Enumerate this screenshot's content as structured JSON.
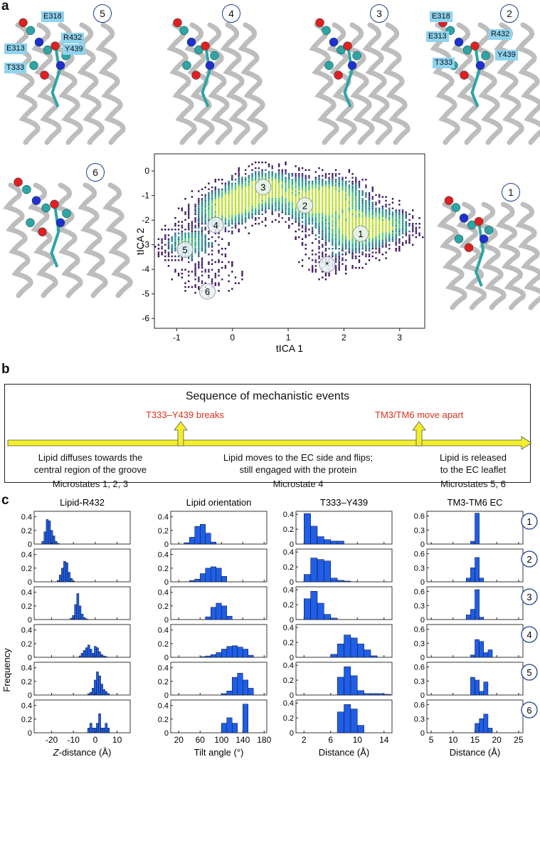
{
  "panel_labels": {
    "a": "a",
    "b": "b",
    "c": "c"
  },
  "panel_a": {
    "snapshots": [
      {
        "state": "5",
        "residues": [
          "E318",
          "R432",
          "E313",
          "Y439",
          "T333"
        ]
      },
      {
        "state": "4",
        "residues": []
      },
      {
        "state": "3",
        "residues": []
      },
      {
        "state": "2",
        "residues": [
          "E318",
          "E313",
          "R432",
          "Y439",
          "T333"
        ]
      },
      {
        "state": "6",
        "residues": []
      },
      {
        "state": "1",
        "residues": []
      }
    ],
    "colors": {
      "helix": "#bdbdbd",
      "carbon": "#2ea4a4",
      "oxygen": "#e02020",
      "nitrogen": "#2030d0"
    }
  },
  "chart_data": [
    {
      "type": "heatmap",
      "title": "",
      "xlabel": "tICA 1",
      "ylabel": "tICA 2",
      "xlim": [
        -1.4,
        3.45
      ],
      "ylim": [
        -6.4,
        0.7
      ],
      "xticks": [
        "-1",
        "0",
        "1",
        "2",
        "3"
      ],
      "xtick_values": [
        -1,
        0,
        1,
        2,
        3
      ],
      "yticks": [
        "0",
        "-1",
        "-2",
        "-3",
        "-4",
        "-5",
        "-6"
      ],
      "ytick_values": [
        0,
        -1,
        -2,
        -3,
        -4,
        -5,
        -6
      ],
      "microstates": [
        {
          "label": "1",
          "x": 2.3,
          "y": -2.55
        },
        {
          "label": "2",
          "x": 1.3,
          "y": -1.4
        },
        {
          "label": "3",
          "x": 0.55,
          "y": -0.65
        },
        {
          "label": "4",
          "x": -0.3,
          "y": -2.2
        },
        {
          "label": "5",
          "x": -0.85,
          "y": -3.2
        },
        {
          "label": "6",
          "x": -0.45,
          "y": -4.9
        },
        {
          "label": "*",
          "x": 1.7,
          "y": -3.8
        }
      ],
      "colormap": [
        "#3b0f55",
        "#44246f",
        "#2a6f8e",
        "#23998a",
        "#4ec36b",
        "#b8de29"
      ]
    },
    {
      "type": "bar",
      "panel": "c",
      "ylabel": "Frequency",
      "row_labels": [
        "1",
        "2",
        "3",
        "4",
        "5",
        "6"
      ],
      "columns": [
        {
          "title": "Lipid-R432",
          "xlabel_italic": "Z",
          "xlabel": "-distance (Å)",
          "xlim": [
            -28,
            16
          ],
          "xticks": [
            "-20",
            "-10",
            "0",
            "10"
          ],
          "xtick_values": [
            -20,
            -10,
            0,
            10
          ],
          "ylim": [
            0,
            0.48
          ],
          "yticks": [
            "0",
            "0.2",
            "0.4"
          ],
          "ytick_values": [
            0,
            0.2,
            0.4
          ],
          "bin_width": 1,
          "rows": [
            {
              "x": [
                -24,
                -23,
                -22,
                -21,
                -20,
                -19,
                -18,
                -17
              ],
              "values": [
                0.04,
                0.18,
                0.36,
                0.34,
                0.2,
                0.12,
                0.04,
                0.01
              ]
            },
            {
              "x": [
                -17,
                -16,
                -15,
                -14,
                -13,
                -12,
                -11,
                -10
              ],
              "values": [
                0.02,
                0.1,
                0.2,
                0.3,
                0.28,
                0.14,
                0.05,
                0.01
              ]
            },
            {
              "x": [
                -11,
                -10,
                -9,
                -8,
                -7,
                -6,
                -5,
                -4
              ],
              "values": [
                0.02,
                0.06,
                0.22,
                0.38,
                0.2,
                0.08,
                0.03,
                0.01
              ]
            },
            {
              "x": [
                -7,
                -6,
                -5,
                -4,
                -3,
                -2,
                -1,
                0,
                1,
                2,
                3,
                4,
                5
              ],
              "values": [
                0.02,
                0.06,
                0.1,
                0.14,
                0.18,
                0.12,
                0.06,
                0.16,
                0.14,
                0.08,
                0.04,
                0.02,
                0.01
              ]
            },
            {
              "x": [
                -3,
                -2,
                -1,
                0,
                1,
                2,
                3,
                4,
                5,
                6
              ],
              "values": [
                0.02,
                0.04,
                0.1,
                0.22,
                0.34,
                0.28,
                0.16,
                0.08,
                0.05,
                0.02
              ]
            },
            {
              "x": [
                -3,
                -2,
                -1,
                0,
                1,
                2,
                3,
                4,
                5,
                6
              ],
              "values": [
                0.07,
                0.14,
                0.07,
                0.07,
                0.14,
                0.28,
                0.07,
                0.07,
                0.14,
                0.07
              ]
            }
          ]
        },
        {
          "title": "Lipid orientation",
          "xlabel_italic": "",
          "xlabel": "Tilt angle (°)",
          "xlim": [
            5,
            185
          ],
          "xticks": [
            "20",
            "60",
            "100",
            "140",
            "180"
          ],
          "xtick_values": [
            20,
            60,
            100,
            140,
            180
          ],
          "ylim": [
            0,
            0.48
          ],
          "yticks": [
            "0",
            "0.2",
            "0.4"
          ],
          "ytick_values": [
            0,
            0.2,
            0.4
          ],
          "bin_width": 10,
          "rows": [
            {
              "x": [
                35,
                45,
                55,
                65,
                75,
                85
              ],
              "values": [
                0.02,
                0.1,
                0.26,
                0.29,
                0.16,
                0.03
              ]
            },
            {
              "x": [
                45,
                55,
                65,
                75,
                85,
                95,
                105
              ],
              "values": [
                0.02,
                0.04,
                0.12,
                0.2,
                0.22,
                0.2,
                0.08
              ]
            },
            {
              "x": [
                75,
                85,
                95,
                105,
                115
              ],
              "values": [
                0.04,
                0.18,
                0.24,
                0.2,
                0.05
              ]
            },
            {
              "x": [
                65,
                75,
                85,
                95,
                105,
                115,
                125,
                135,
                145,
                155
              ],
              "values": [
                0.01,
                0.02,
                0.04,
                0.07,
                0.12,
                0.16,
                0.17,
                0.15,
                0.12,
                0.03
              ]
            },
            {
              "x": [
                105,
                115,
                125,
                135,
                145,
                155
              ],
              "values": [
                0.02,
                0.06,
                0.26,
                0.32,
                0.22,
                0.1
              ]
            },
            {
              "x": [
                105,
                115,
                125,
                135,
                145
              ],
              "values": [
                0.14,
                0.22,
                0.14,
                0.0,
                0.42
              ]
            }
          ]
        },
        {
          "title": "T333–Y439",
          "xlabel_italic": "",
          "xlabel": "Distance (Å)",
          "xlim": [
            0.8,
            15.2
          ],
          "xticks": [
            "2",
            "6",
            "10",
            "14"
          ],
          "xtick_values": [
            2,
            6,
            10,
            14
          ],
          "ylim": [
            0,
            0.44
          ],
          "yticks": [
            "0",
            "0.2",
            "0.4"
          ],
          "ytick_values": [
            0,
            0.2,
            0.4
          ],
          "bin_width": 1,
          "rows": [
            {
              "x": [
                2.5,
                3.5,
                4.5,
                5.5,
                6.5,
                7.5
              ],
              "values": [
                0.41,
                0.24,
                0.1,
                0.06,
                0.04,
                0.04
              ]
            },
            {
              "x": [
                2.5,
                3.5,
                4.5,
                5.5,
                6.5,
                7.5,
                8.5
              ],
              "values": [
                0.1,
                0.32,
                0.3,
                0.28,
                0.05,
                0.02,
                0.01
              ]
            },
            {
              "x": [
                2.5,
                3.5,
                4.5,
                5.5,
                6.5
              ],
              "values": [
                0.28,
                0.38,
                0.22,
                0.07,
                0.02
              ]
            },
            {
              "x": [
                6.5,
                7.5,
                8.5,
                9.5,
                10.5,
                11.5,
                12.5
              ],
              "values": [
                0.04,
                0.18,
                0.3,
                0.26,
                0.18,
                0.1,
                0.02
              ]
            },
            {
              "x": [
                7.5,
                8.5,
                9.5,
                10.5,
                11.5,
                12.5,
                13.5,
                14.5
              ],
              "values": [
                0.24,
                0.38,
                0.26,
                0.06,
                0.02,
                0.02,
                0.02,
                0.01
              ]
            },
            {
              "x": [
                7.5,
                8.5,
                9.5,
                10.5
              ],
              "values": [
                0.28,
                0.38,
                0.32,
                0.1
              ]
            }
          ]
        },
        {
          "title": "TM3-TM6 EC",
          "xlabel_italic": "",
          "xlabel": "Distance (Å)",
          "xlim": [
            4,
            26
          ],
          "xticks": [
            "5",
            "10",
            "15",
            "20",
            "25"
          ],
          "xtick_values": [
            5,
            10,
            15,
            20,
            25
          ],
          "ylim": [
            0,
            0.7
          ],
          "yticks": [
            "0",
            "0.3",
            "0.6"
          ],
          "ytick_values": [
            0,
            0.3,
            0.6
          ],
          "bin_width": 1,
          "rows": [
            {
              "x": [
                14.5,
                15.5
              ],
              "values": [
                0.06,
                0.66
              ]
            },
            {
              "x": [
                13.5,
                14.5,
                15.5,
                16.5
              ],
              "values": [
                0.08,
                0.3,
                0.52,
                0.08
              ]
            },
            {
              "x": [
                13.5,
                14.5,
                15.5,
                16.5
              ],
              "values": [
                0.1,
                0.22,
                0.64,
                0.05
              ]
            },
            {
              "x": [
                14.5,
                15.5,
                16.5,
                17.5,
                18.5
              ],
              "values": [
                0.05,
                0.38,
                0.34,
                0.1,
                0.16
              ]
            },
            {
              "x": [
                14.5,
                15.5,
                16.5,
                17.5
              ],
              "values": [
                0.38,
                0.32,
                0.08,
                0.28
              ]
            },
            {
              "x": [
                15.5,
                16.5,
                17.5,
                18.5
              ],
              "values": [
                0.2,
                0.3,
                0.4,
                0.1
              ]
            }
          ]
        }
      ],
      "bar_color": "#1f5ee8"
    }
  ],
  "panel_b": {
    "title": "Sequence of mechanistic events",
    "event1": "T333–Y439 breaks",
    "event2": "TM3/TM6 move apart",
    "stage1_line1": "Lipid diffuses towards the",
    "stage1_line2": "central region of the groove",
    "stage1_states": "Microstates 1, 2, 3",
    "stage2_line1": "Lipid moves to the EC side and flips;",
    "stage2_line2": "still engaged with the protein",
    "stage2_states": "Microstate 4",
    "stage3_line1": "Lipid is released",
    "stage3_line2": "to the EC leaflet",
    "stage3_states": "Microstates 5, 6",
    "arrow_color": "#f2ef28"
  }
}
